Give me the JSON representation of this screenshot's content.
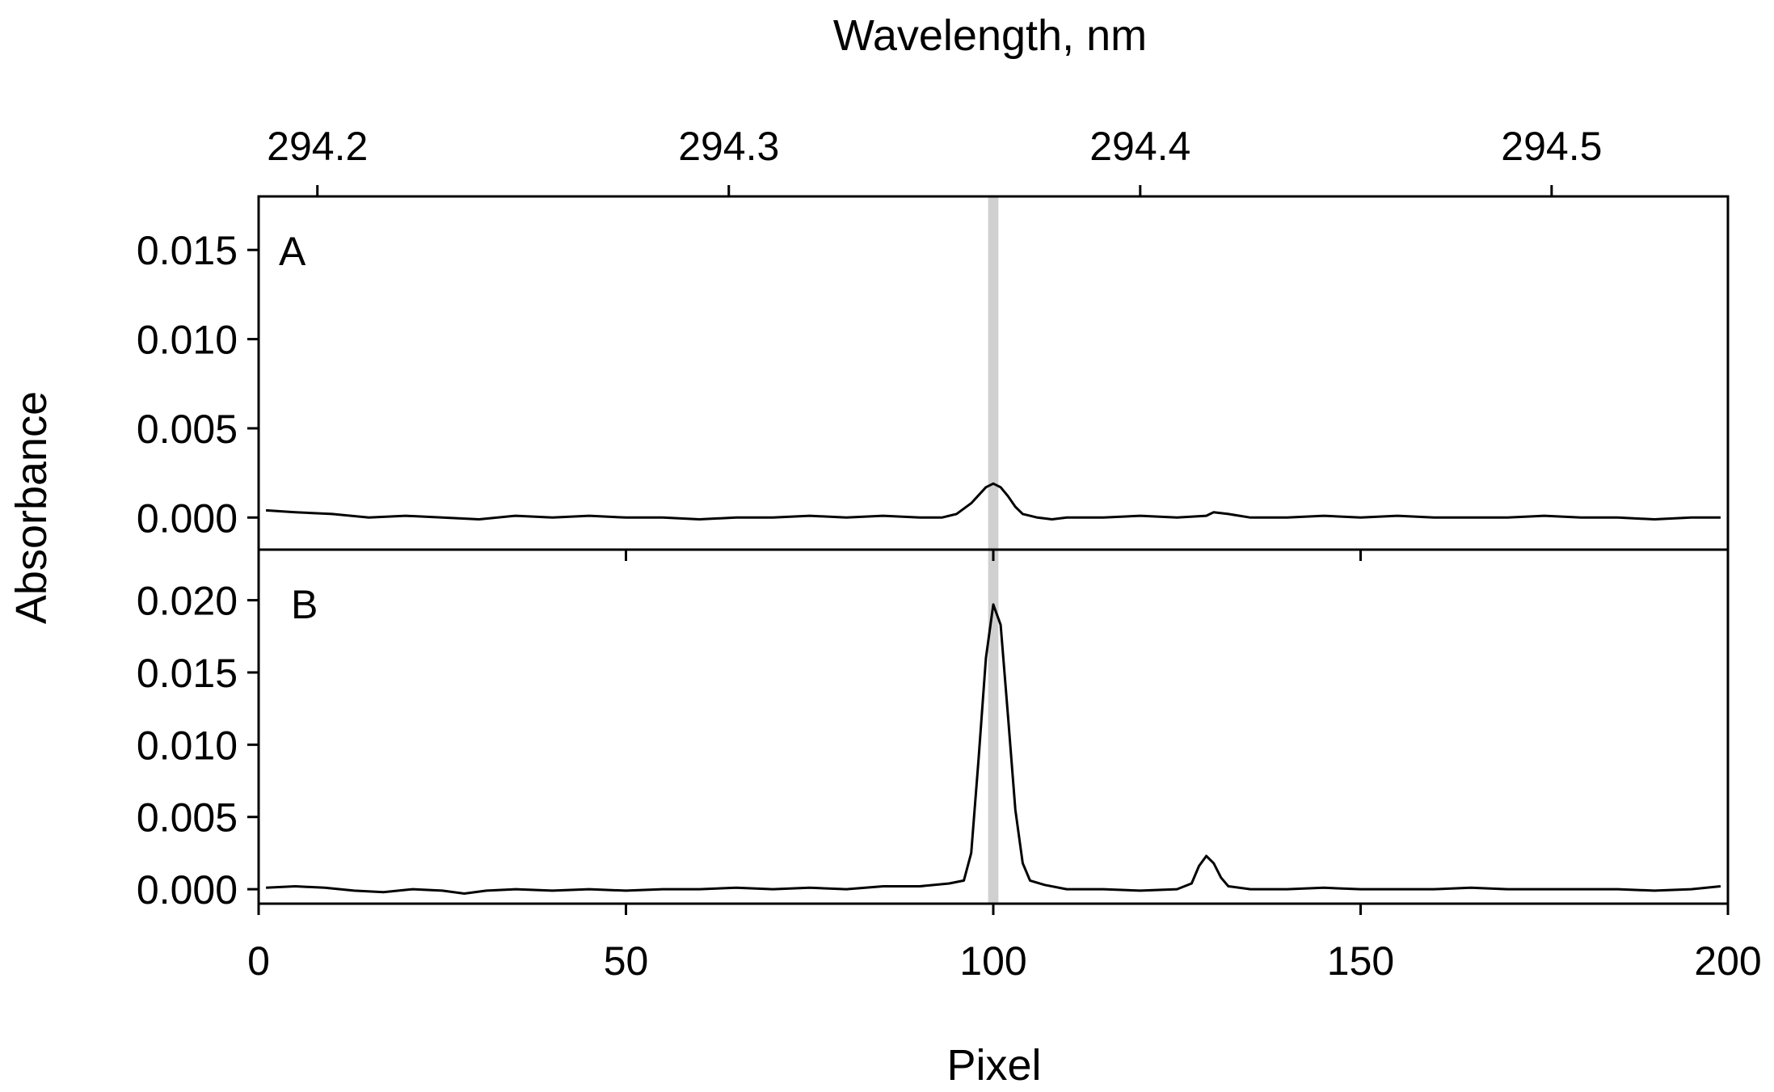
{
  "chart_data": {
    "type": "line",
    "layout": "two stacked panels sharing the x axis",
    "xlabel": "Pixel",
    "xlim": [
      0,
      200
    ],
    "xticks": [
      0,
      50,
      100,
      150,
      200
    ],
    "x2label": "Wavelength, nm",
    "x2ticks": [
      {
        "label": "294.2",
        "pixel": 8
      },
      {
        "label": "294.3",
        "pixel": 64
      },
      {
        "label": "294.4",
        "pixel": 120
      },
      {
        "label": "294.5",
        "pixel": 176
      }
    ],
    "ylabel": "Absorbance",
    "grid": false,
    "highlight_band": {
      "x_from": 99.3,
      "x_to": 100.7,
      "color": "#d0d0d0"
    },
    "line_color": "#000000",
    "panels": [
      {
        "label": "A",
        "ylim": [
          -0.0018,
          0.018
        ],
        "yticks": [
          "0.015",
          "0.010",
          "0.005",
          "0.000"
        ],
        "series": [
          {
            "points": [
              [
                1,
                0.0004
              ],
              [
                5,
                0.0003
              ],
              [
                10,
                0.0002
              ],
              [
                15,
                0.0
              ],
              [
                20,
                0.0001
              ],
              [
                25,
                0.0
              ],
              [
                30,
                -0.0001
              ],
              [
                35,
                0.0001
              ],
              [
                40,
                0.0
              ],
              [
                45,
                0.0001
              ],
              [
                50,
                0.0
              ],
              [
                55,
                0.0
              ],
              [
                60,
                -0.0001
              ],
              [
                65,
                0.0
              ],
              [
                70,
                0.0
              ],
              [
                75,
                0.0001
              ],
              [
                80,
                0.0
              ],
              [
                85,
                0.0001
              ],
              [
                90,
                0.0
              ],
              [
                93,
                0.0
              ],
              [
                95,
                0.0002
              ],
              [
                97,
                0.0008
              ],
              [
                99,
                0.0017
              ],
              [
                100,
                0.0019
              ],
              [
                101,
                0.0017
              ],
              [
                102,
                0.0012
              ],
              [
                103,
                0.0006
              ],
              [
                104,
                0.0002
              ],
              [
                106,
                0.0
              ],
              [
                108,
                -0.0001
              ],
              [
                110,
                0.0
              ],
              [
                115,
                0.0
              ],
              [
                120,
                0.0001
              ],
              [
                125,
                0.0
              ],
              [
                129,
                0.0001
              ],
              [
                130,
                0.0003
              ],
              [
                132,
                0.0002
              ],
              [
                135,
                0.0
              ],
              [
                140,
                0.0
              ],
              [
                145,
                0.0001
              ],
              [
                150,
                0.0
              ],
              [
                155,
                0.0001
              ],
              [
                160,
                0.0
              ],
              [
                165,
                0.0
              ],
              [
                170,
                0.0
              ],
              [
                175,
                0.0001
              ],
              [
                180,
                0.0
              ],
              [
                185,
                0.0
              ],
              [
                190,
                -0.0001
              ],
              [
                195,
                0.0
              ],
              [
                199,
                0.0
              ]
            ]
          }
        ]
      },
      {
        "label": "B",
        "ylim": [
          -0.001,
          0.0235
        ],
        "yticks": [
          "0.020",
          "0.015",
          "0.010",
          "0.005",
          "0.000"
        ],
        "series": [
          {
            "points": [
              [
                1,
                0.0001
              ],
              [
                5,
                0.0002
              ],
              [
                9,
                0.0001
              ],
              [
                13,
                -0.0001
              ],
              [
                17,
                -0.0002
              ],
              [
                21,
                0.0
              ],
              [
                25,
                -0.0001
              ],
              [
                28,
                -0.0003
              ],
              [
                31,
                -0.0001
              ],
              [
                35,
                0.0
              ],
              [
                40,
                -0.0001
              ],
              [
                45,
                0.0
              ],
              [
                50,
                -0.0001
              ],
              [
                55,
                0.0
              ],
              [
                60,
                0.0
              ],
              [
                65,
                0.0001
              ],
              [
                70,
                0.0
              ],
              [
                75,
                0.0001
              ],
              [
                80,
                0.0
              ],
              [
                85,
                0.0002
              ],
              [
                90,
                0.0002
              ],
              [
                94,
                0.0004
              ],
              [
                96,
                0.0006
              ],
              [
                97,
                0.0025
              ],
              [
                98,
                0.009
              ],
              [
                99,
                0.016
              ],
              [
                100,
                0.0197
              ],
              [
                101,
                0.0183
              ],
              [
                102,
                0.012
              ],
              [
                103,
                0.0055
              ],
              [
                104,
                0.0018
              ],
              [
                105,
                0.0006
              ],
              [
                107,
                0.0003
              ],
              [
                110,
                0.0
              ],
              [
                115,
                0.0
              ],
              [
                120,
                -0.0001
              ],
              [
                125,
                0.0
              ],
              [
                127,
                0.0004
              ],
              [
                128,
                0.0016
              ],
              [
                129,
                0.0023
              ],
              [
                130,
                0.0018
              ],
              [
                131,
                0.0008
              ],
              [
                132,
                0.0002
              ],
              [
                135,
                0.0
              ],
              [
                140,
                0.0
              ],
              [
                145,
                0.0001
              ],
              [
                150,
                0.0
              ],
              [
                155,
                0.0
              ],
              [
                160,
                0.0
              ],
              [
                165,
                0.0001
              ],
              [
                170,
                0.0
              ],
              [
                175,
                0.0
              ],
              [
                180,
                0.0
              ],
              [
                185,
                0.0
              ],
              [
                190,
                -0.0001
              ],
              [
                195,
                0.0
              ],
              [
                199,
                0.0002
              ]
            ]
          }
        ]
      }
    ]
  }
}
